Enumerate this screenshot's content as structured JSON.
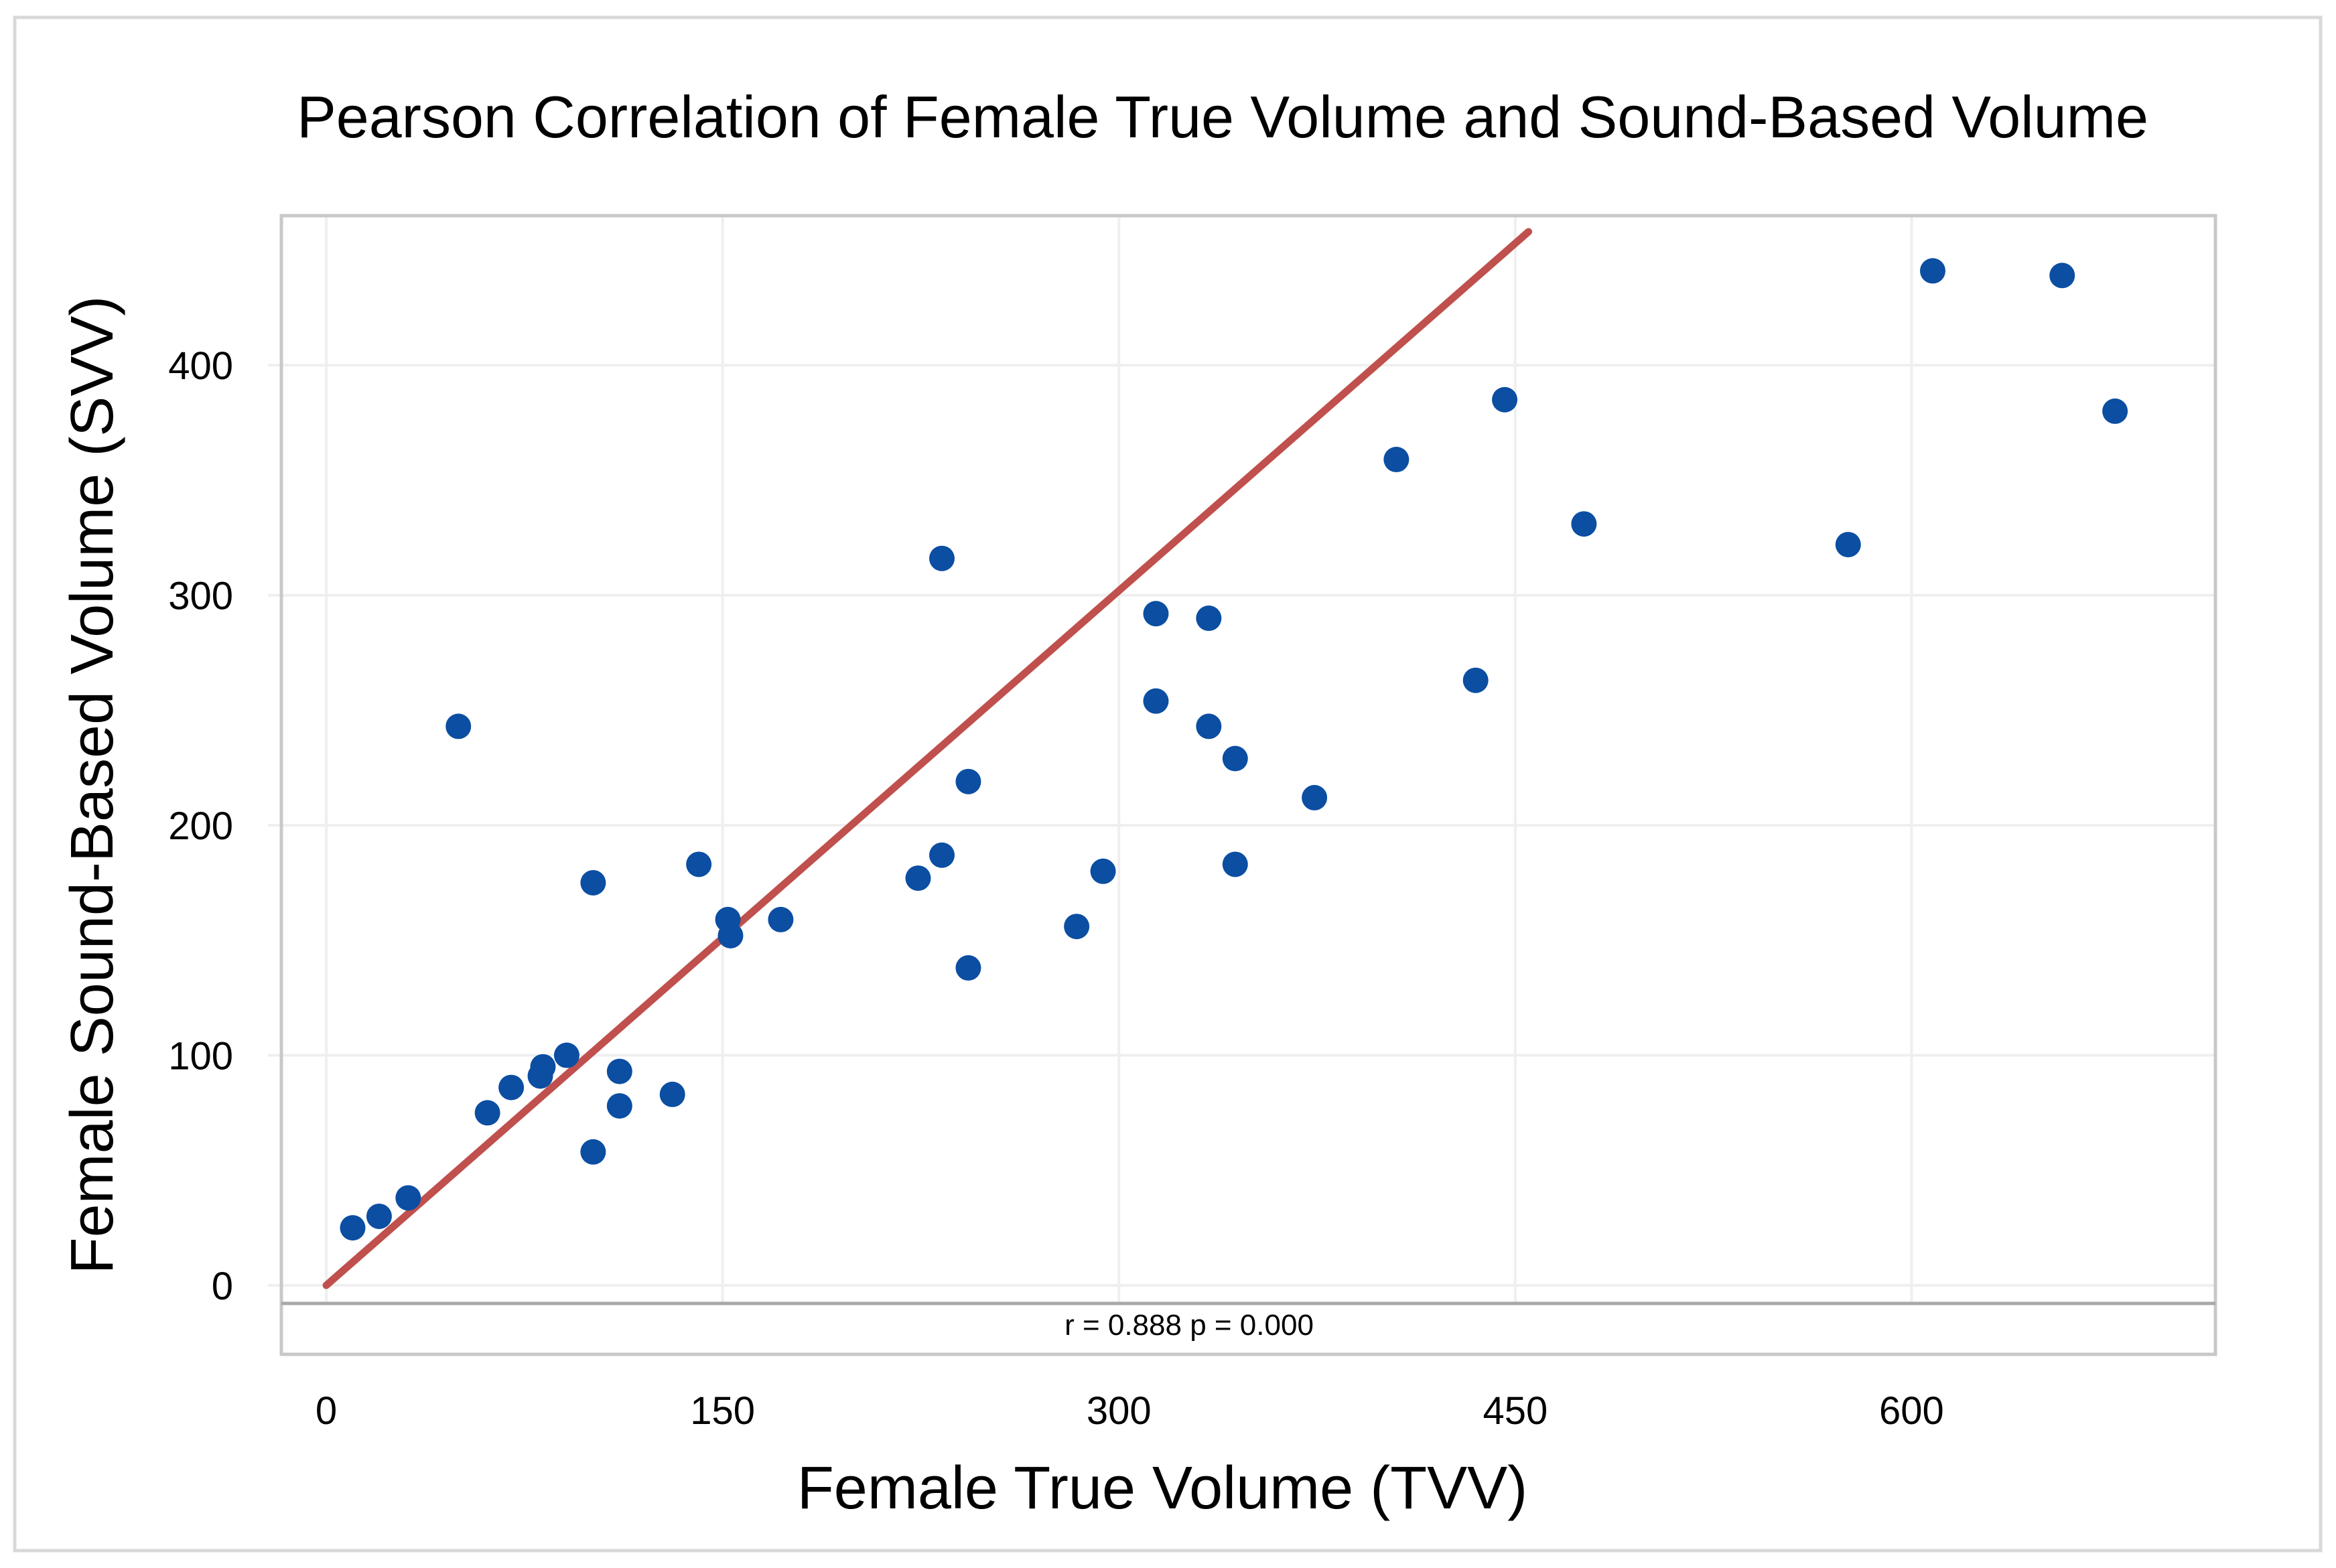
{
  "chart_data": {
    "type": "scatter",
    "title": "Pearson Correlation of Female True Volume and Sound-Based Volume",
    "xlabel": "Female True Volume (TVV)",
    "ylabel": "Female Sound-Based  Volume (SVV)",
    "xlim": [
      -17,
      715
    ],
    "ylim": [
      -30,
      465
    ],
    "x_ticks": [
      0,
      150,
      300,
      450,
      600
    ],
    "y_ticks": [
      0,
      100,
      200,
      300,
      400
    ],
    "x_tick_labels": [
      "0",
      "150",
      "300",
      "450",
      "600"
    ],
    "y_tick_labels": [
      "0",
      "100",
      "200",
      "300",
      "400"
    ],
    "grid": true,
    "annotation": "r = 0.888 p = 0.000",
    "trend_line": {
      "x": [
        0,
        455
      ],
      "y": [
        0,
        458
      ]
    },
    "point_color": "#0b4ea2",
    "line_color": "#c0504d",
    "series": [
      {
        "points": [
          {
            "x": 10,
            "y": 25
          },
          {
            "x": 20,
            "y": 30
          },
          {
            "x": 31,
            "y": 38
          },
          {
            "x": 50,
            "y": 243
          },
          {
            "x": 61,
            "y": 75
          },
          {
            "x": 70,
            "y": 86
          },
          {
            "x": 81,
            "y": 91
          },
          {
            "x": 82,
            "y": 95
          },
          {
            "x": 91,
            "y": 100
          },
          {
            "x": 101,
            "y": 175
          },
          {
            "x": 101,
            "y": 58
          },
          {
            "x": 111,
            "y": 93
          },
          {
            "x": 111,
            "y": 78
          },
          {
            "x": 131,
            "y": 83
          },
          {
            "x": 141,
            "y": 183
          },
          {
            "x": 152,
            "y": 159
          },
          {
            "x": 153,
            "y": 152
          },
          {
            "x": 172,
            "y": 159
          },
          {
            "x": 224,
            "y": 177
          },
          {
            "x": 233,
            "y": 316
          },
          {
            "x": 233,
            "y": 187
          },
          {
            "x": 243,
            "y": 219
          },
          {
            "x": 243,
            "y": 138
          },
          {
            "x": 284,
            "y": 156
          },
          {
            "x": 294,
            "y": 180
          },
          {
            "x": 314,
            "y": 292
          },
          {
            "x": 314,
            "y": 254
          },
          {
            "x": 334,
            "y": 290
          },
          {
            "x": 334,
            "y": 243
          },
          {
            "x": 344,
            "y": 229
          },
          {
            "x": 344,
            "y": 183
          },
          {
            "x": 374,
            "y": 212
          },
          {
            "x": 405,
            "y": 359
          },
          {
            "x": 435,
            "y": 263
          },
          {
            "x": 446,
            "y": 385
          },
          {
            "x": 476,
            "y": 331
          },
          {
            "x": 576,
            "y": 322
          },
          {
            "x": 608,
            "y": 441
          },
          {
            "x": 657,
            "y": 439
          },
          {
            "x": 677,
            "y": 380
          }
        ]
      }
    ]
  }
}
